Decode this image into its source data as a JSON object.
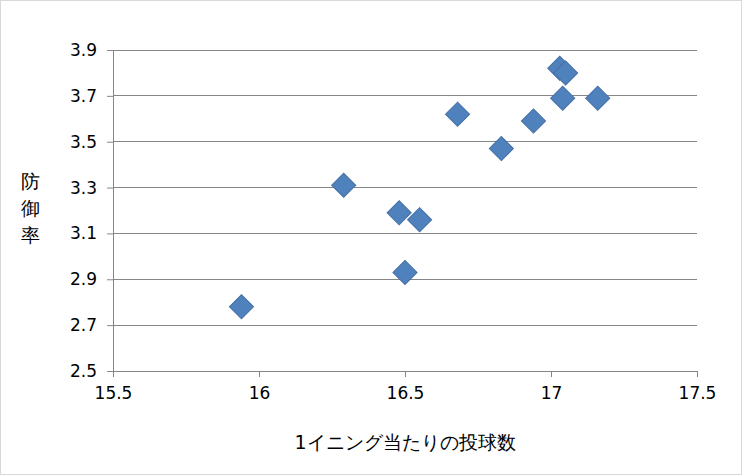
{
  "chart_data": {
    "type": "scatter",
    "x_label": "1イニング当たりの投球数",
    "y_label": "防御率",
    "x": [
      15.94,
      16.29,
      16.48,
      16.55,
      16.5,
      16.68,
      16.83,
      16.94,
      17.03,
      17.05,
      17.04,
      17.16
    ],
    "values": [
      2.78,
      3.31,
      3.19,
      3.16,
      2.93,
      3.62,
      3.47,
      3.59,
      3.82,
      3.8,
      3.69,
      3.69
    ],
    "color": "#4f81bd",
    "marker": "diamond",
    "xlim": [
      15.5,
      17.5
    ],
    "xticks": [
      15.5,
      16,
      16.5,
      17,
      17.5
    ],
    "ylim": [
      2.5,
      3.9
    ],
    "yticks": [
      2.5,
      2.7,
      2.9,
      3.1,
      3.3,
      3.5,
      3.7,
      3.9
    ],
    "grid": true
  }
}
